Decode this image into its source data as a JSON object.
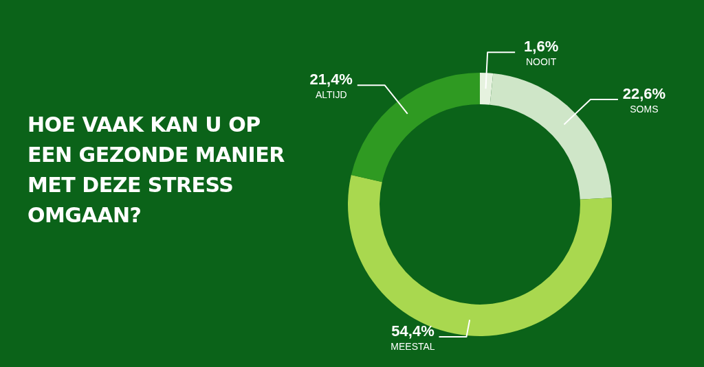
{
  "chart_data": {
    "type": "donut",
    "title": "HOE VAAK KAN U OP EEN GEZONDE MANIER MET DEZE STRESS OMGAAN?",
    "categories": [
      "NOOIT",
      "SOMS",
      "MEESTAL",
      "ALTIJD"
    ],
    "values": [
      1.6,
      22.6,
      54.4,
      21.4
    ],
    "value_labels": [
      "1,6%",
      "22,6%",
      "54,4%",
      "21,4%"
    ],
    "colors": [
      "#e6f2df",
      "#cfe6c8",
      "#a9d84f",
      "#2f9a22"
    ],
    "legend": false
  }
}
